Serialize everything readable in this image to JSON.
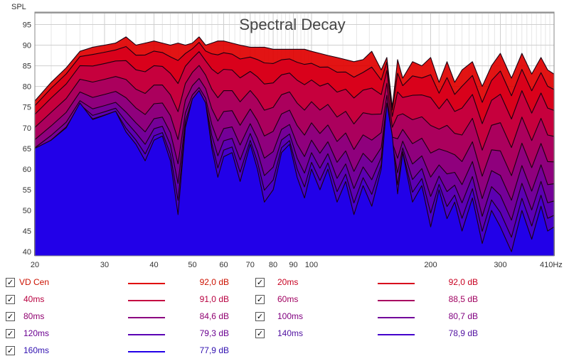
{
  "chart_data": {
    "type": "area",
    "title": "Spectral Decay",
    "ylabel": "SPL",
    "xscale": "log",
    "xlim": [
      20,
      410
    ],
    "ylim": [
      39,
      98
    ],
    "x_ticks": [
      {
        "v": 20,
        "label": "20"
      },
      {
        "v": 30,
        "label": "30"
      },
      {
        "v": 40,
        "label": "40"
      },
      {
        "v": 50,
        "label": "50"
      },
      {
        "v": 60,
        "label": "60"
      },
      {
        "v": 70,
        "label": "70"
      },
      {
        "v": 80,
        "label": "80"
      },
      {
        "v": 90,
        "label": "90"
      },
      {
        "v": 100,
        "label": "100"
      },
      {
        "v": 200,
        "label": "200"
      },
      {
        "v": 300,
        "label": "300"
      },
      {
        "v": 410,
        "label": "410Hz"
      }
    ],
    "y_ticks": [
      40,
      45,
      50,
      55,
      60,
      65,
      70,
      75,
      80,
      85,
      90,
      95
    ],
    "grid": true,
    "legend_position": "bottom",
    "x": [
      20,
      22,
      24,
      26,
      28,
      30,
      32,
      34,
      36,
      38,
      40,
      42,
      44,
      46,
      48,
      50,
      52,
      54,
      56,
      58,
      60,
      63,
      66,
      70,
      73,
      76,
      80,
      84,
      88,
      92,
      96,
      100,
      105,
      110,
      116,
      122,
      128,
      135,
      142,
      150,
      155,
      160,
      165,
      170,
      180,
      190,
      200,
      210,
      220,
      230,
      240,
      255,
      270,
      285,
      300,
      320,
      340,
      360,
      380,
      395,
      410
    ],
    "series": [
      {
        "name": "VD Cen",
        "color": "#e00000",
        "offset": 0.0
      },
      {
        "name": "20ms",
        "color": "#d8001c",
        "offset": 0.0
      },
      {
        "name": "40ms",
        "color": "#c40040",
        "offset": -1.0
      },
      {
        "name": "60ms",
        "color": "#a80060",
        "offset": -4.0
      },
      {
        "name": "80ms",
        "color": "#8c0080",
        "offset": -8.0
      },
      {
        "name": "100ms",
        "color": "#72009a",
        "offset": -12.0
      },
      {
        "name": "120ms",
        "color": "#5a00b4",
        "offset": -15.0
      },
      {
        "name": "140ms",
        "color": "#4400cc",
        "offset": -18.0
      },
      {
        "name": "160ms",
        "color": "#2200e8",
        "offset": -20.0
      }
    ],
    "base_curve": [
      76.5,
      81.0,
      84.5,
      88.5,
      89.5,
      90.0,
      90.5,
      92.0,
      90.0,
      90.5,
      91.0,
      90.5,
      90.0,
      90.5,
      90.0,
      90.5,
      92.0,
      90.0,
      90.5,
      91.0,
      91.0,
      90.5,
      90.0,
      89.5,
      89.5,
      89.5,
      89.0,
      89.0,
      89.0,
      89.0,
      89.0,
      88.5,
      88.0,
      87.5,
      87.0,
      86.5,
      86.0,
      86.5,
      88.5,
      84.0,
      87.0,
      75.0,
      86.5,
      82.0,
      86.0,
      85.0,
      87.0,
      81.0,
      86.0,
      81.0,
      84.0,
      86.0,
      80.0,
      85.0,
      88.0,
      82.0,
      88.0,
      83.0,
      87.0,
      84.0,
      83.0
    ],
    "front_curve": [
      65.0,
      67.0,
      70.0,
      76.0,
      72.0,
      73.0,
      74.0,
      69.0,
      66.0,
      62.0,
      67.0,
      68.0,
      62.0,
      49.0,
      70.0,
      77.0,
      79.0,
      76.0,
      65.0,
      58.0,
      63.0,
      64.0,
      57.0,
      66.0,
      60.0,
      52.0,
      55.0,
      64.0,
      66.0,
      58.0,
      53.0,
      60.0,
      55.0,
      60.0,
      52.0,
      57.0,
      49.0,
      56.0,
      51.0,
      60.0,
      76.0,
      68.0,
      54.0,
      64.0,
      52.0,
      56.0,
      46.0,
      55.0,
      48.0,
      52.0,
      45.0,
      53.0,
      42.0,
      50.0,
      46.0,
      40.0,
      50.0,
      43.0,
      51.0,
      45.0,
      46.0
    ],
    "legend": [
      {
        "name": "VD Cen",
        "value": "92,0 dB",
        "color": "#e00000",
        "text_color": "#cc1100"
      },
      {
        "name": "20ms",
        "value": "92,0 dB",
        "color": "#d8001c",
        "text_color": "#c80020"
      },
      {
        "name": "40ms",
        "value": "91,0 dB",
        "color": "#c40040",
        "text_color": "#b80040"
      },
      {
        "name": "60ms",
        "value": "88,5 dB",
        "color": "#a80060",
        "text_color": "#a00060"
      },
      {
        "name": "80ms",
        "value": "84,6 dB",
        "color": "#8c0080",
        "text_color": "#900070"
      },
      {
        "name": "100ms",
        "value": "80,7 dB",
        "color": "#72009a",
        "text_color": "#800080"
      },
      {
        "name": "120ms",
        "value": "79,3 dB",
        "color": "#5a00b4",
        "text_color": "#6a0090"
      },
      {
        "name": "140ms",
        "value": "78,9 dB",
        "color": "#4400cc",
        "text_color": "#5010a0"
      },
      {
        "name": "160ms",
        "value": "77,9 dB",
        "color": "#2200e8",
        "text_color": "#3010b0"
      }
    ]
  }
}
